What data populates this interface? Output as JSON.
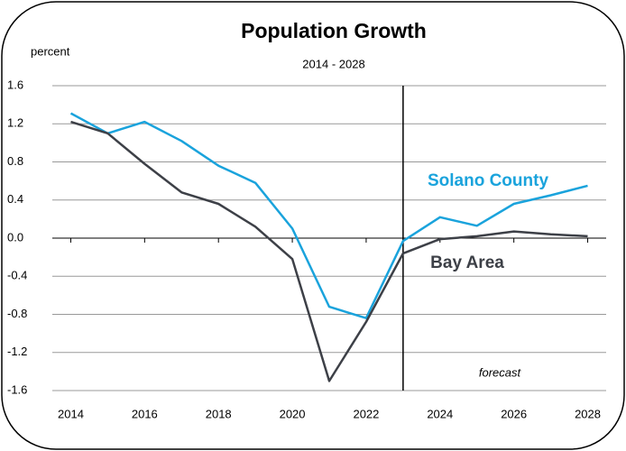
{
  "chart_data": {
    "type": "line",
    "title": "Population Growth",
    "subtitle": "2014 - 2028",
    "y_label": "percent",
    "annotation": "forecast",
    "forecast_x": 2023,
    "x": [
      2014,
      2015,
      2016,
      2017,
      2018,
      2019,
      2020,
      2021,
      2022,
      2023,
      2024,
      2025,
      2026,
      2027,
      2028
    ],
    "series": [
      {
        "name": "Solano County",
        "color": "#1aa3dc",
        "values": [
          1.31,
          1.1,
          1.22,
          1.02,
          0.76,
          0.58,
          0.1,
          -0.72,
          -0.84,
          -0.03,
          0.22,
          0.13,
          0.36,
          0.45,
          0.55
        ]
      },
      {
        "name": "Bay Area",
        "color": "#3d4047",
        "values": [
          1.22,
          1.1,
          0.78,
          0.48,
          0.36,
          0.12,
          -0.22,
          -1.5,
          -0.88,
          -0.16,
          -0.01,
          0.02,
          0.07,
          0.04,
          0.02
        ]
      }
    ],
    "xlim": [
      2013.5,
      2028.5
    ],
    "xticks": [
      2014,
      2016,
      2018,
      2020,
      2022,
      2024,
      2026,
      2028
    ],
    "ylim": [
      -1.6,
      1.6
    ],
    "yticks": [
      1.6,
      1.2,
      0.8,
      0.4,
      {
        "value": 0,
        "label": "0.0"
      },
      -0.4,
      -0.8,
      -1.2,
      -1.6
    ],
    "grid": true
  }
}
